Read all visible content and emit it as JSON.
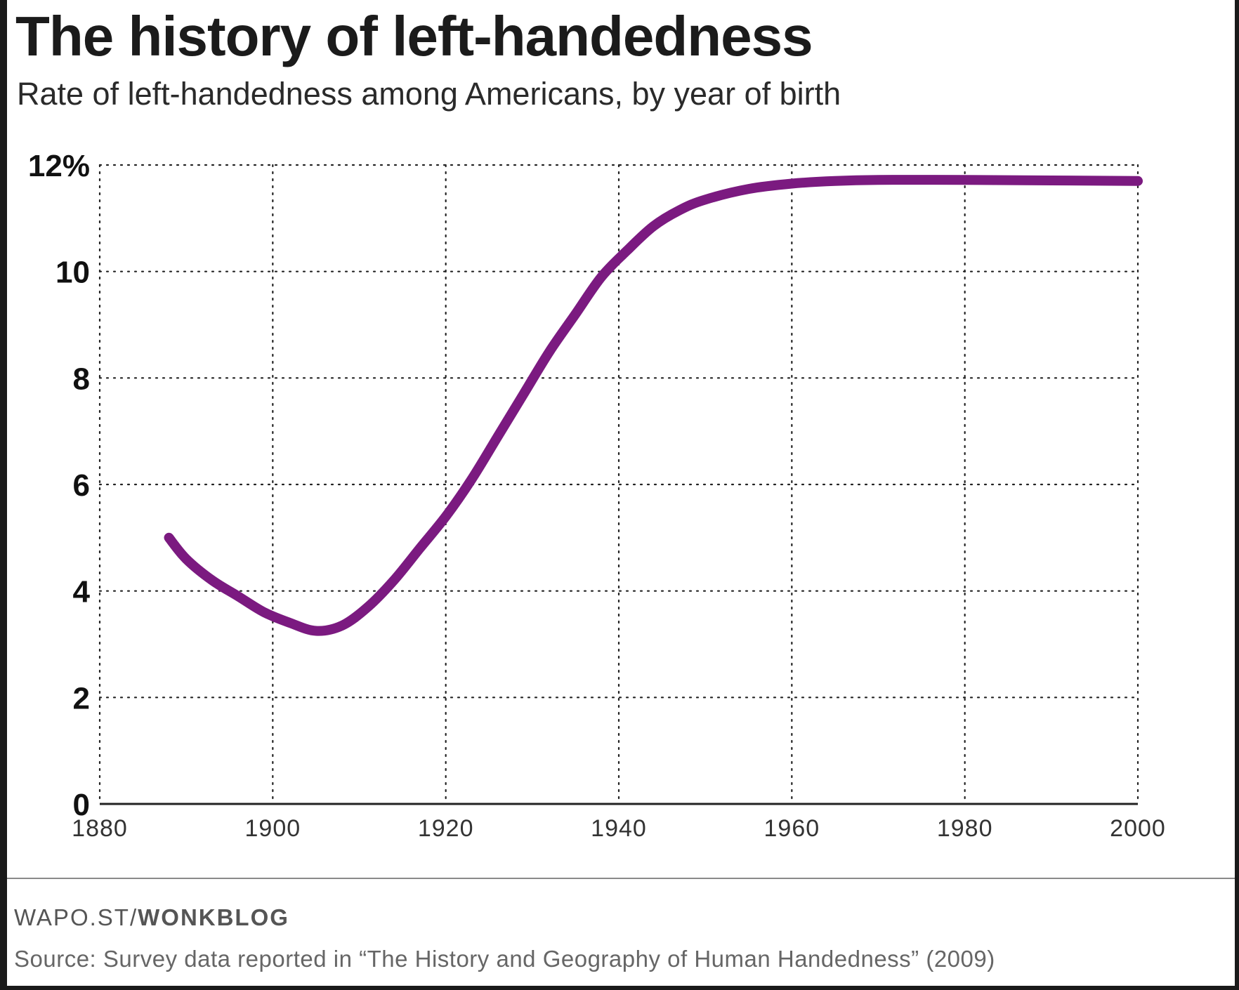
{
  "header": {
    "title": "The history of left-handedness",
    "subtitle": "Rate of left-handedness among Americans, by year of birth"
  },
  "footer": {
    "credit_prefix": "WAPO.ST/",
    "credit_brand": "WONKBLOG",
    "source": "Source: Survey data reported in “The History and Geography of Human Handedness” (2009)"
  },
  "chart_data": {
    "type": "line",
    "title": "The history of left-handedness",
    "subtitle": "Rate of left-handedness among Americans, by year of birth",
    "xlabel": "",
    "ylabel": "",
    "xlim": [
      1880,
      2000
    ],
    "ylim": [
      0,
      12
    ],
    "x_ticks": [
      1880,
      1900,
      1920,
      1940,
      1960,
      1980,
      2000
    ],
    "x_tick_labels": [
      "1880",
      "1900",
      "1920",
      "1940",
      "1960",
      "1980",
      "2000"
    ],
    "y_ticks": [
      0,
      2,
      4,
      6,
      8,
      10,
      12
    ],
    "y_tick_labels": [
      "0",
      "2",
      "4",
      "6",
      "8",
      "10",
      "12%"
    ],
    "grid": true,
    "line_color": "#7b1a80",
    "series": [
      {
        "name": "Left-handedness rate",
        "x": [
          1888,
          1890,
          1893,
          1896,
          1899,
          1902,
          1905,
          1908,
          1911,
          1914,
          1917,
          1920,
          1923,
          1926,
          1929,
          1932,
          1935,
          1938,
          1941,
          1944,
          1947,
          1950,
          1955,
          1960,
          1965,
          1970,
          1980,
          1990,
          2000
        ],
        "values": [
          5.0,
          4.6,
          4.2,
          3.9,
          3.6,
          3.4,
          3.25,
          3.35,
          3.7,
          4.2,
          4.8,
          5.4,
          6.1,
          6.9,
          7.7,
          8.5,
          9.2,
          9.9,
          10.4,
          10.85,
          11.15,
          11.35,
          11.55,
          11.65,
          11.7,
          11.72,
          11.72,
          11.71,
          11.7
        ]
      }
    ]
  }
}
